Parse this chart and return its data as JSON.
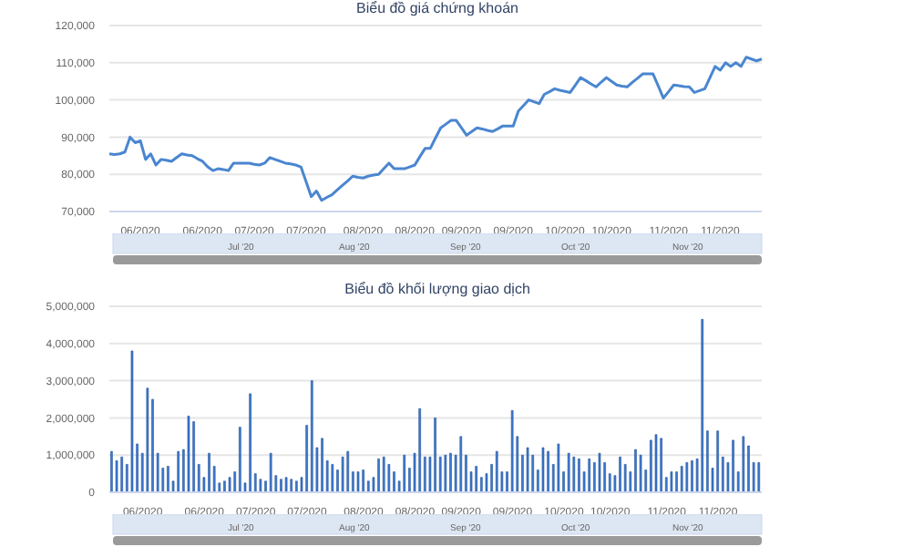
{
  "chart_data": [
    {
      "type": "line",
      "title": "Biểu đồ giá chứng khoán",
      "categories": [
        null,
        null,
        null,
        null,
        null,
        null,
        "06/2020",
        null,
        null,
        null,
        null,
        null,
        null,
        null,
        null,
        null,
        null,
        null,
        "06/2020",
        null,
        null,
        null,
        null,
        null,
        null,
        null,
        null,
        null,
        "07/2020",
        null,
        null,
        null,
        null,
        null,
        null,
        null,
        null,
        null,
        "07/2020",
        null,
        null,
        null,
        null,
        null,
        null,
        null,
        null,
        null,
        null,
        "08/2020",
        null,
        null,
        null,
        null,
        null,
        null,
        null,
        null,
        null,
        "08/2020",
        null,
        null,
        null,
        null,
        null,
        null,
        null,
        null,
        "09/2020",
        null,
        null,
        null,
        null,
        null,
        null,
        null,
        null,
        null,
        "09/2020",
        null,
        null,
        null,
        null,
        null,
        null,
        null,
        null,
        null,
        "10/2020",
        null,
        null,
        null,
        null,
        null,
        null,
        null,
        null,
        "10/2020",
        null,
        null,
        null,
        null,
        null,
        null,
        null,
        null,
        null,
        null,
        "11/2020",
        null,
        null,
        null,
        null,
        null,
        null,
        null,
        null,
        null,
        "11/2020",
        null,
        null,
        null,
        null,
        null,
        null,
        null,
        null
      ],
      "series": [
        {
          "color": "#4a86d0",
          "values": [
            85500,
            85300,
            85500,
            86000,
            90000,
            88500,
            89000,
            84000,
            85500,
            82500,
            84000,
            83800,
            83500,
            84500,
            85500,
            85200,
            85000,
            84200,
            83500,
            82000,
            81000,
            81500,
            81300,
            81000,
            83000,
            83000,
            83000,
            83000,
            82700,
            82500,
            83000,
            84500,
            84000,
            83500,
            83000,
            82800,
            82500,
            82000,
            78000,
            74000,
            75500,
            73000,
            73800,
            74500,
            75800,
            77000,
            78200,
            79500,
            79200,
            79000,
            79500,
            79800,
            80000,
            81500,
            83000,
            81500,
            81500,
            81500,
            82000,
            82500,
            84800,
            87000,
            87000,
            89800,
            92500,
            93500,
            94500,
            94500,
            92500,
            90500,
            91500,
            92500,
            92200,
            91800,
            91500,
            92200,
            93000,
            93000,
            93000,
            97000,
            98500,
            100000,
            99500,
            99000,
            101500,
            102200,
            103000,
            102600,
            102300,
            102000,
            104000,
            106000,
            105200,
            104300,
            103500,
            104800,
            106000,
            105000,
            104000,
            103700,
            103500,
            104700,
            105800,
            107000,
            107000,
            107000,
            103800,
            100500,
            102200,
            104000,
            103800,
            103600,
            103500,
            102000,
            102500,
            103000,
            106000,
            109000,
            108000,
            110000,
            109000,
            110000,
            109000,
            111500,
            111000,
            110500,
            111000
          ]
        }
      ],
      "ylim": [
        70000,
        120000
      ],
      "yticks": [
        {
          "value": 70000,
          "label": "70,000"
        },
        {
          "value": 80000,
          "label": "80,000"
        },
        {
          "value": 90000,
          "label": "90,000"
        },
        {
          "value": 100000,
          "label": "100,000"
        },
        {
          "value": 110000,
          "label": "110,000"
        },
        {
          "value": 120000,
          "label": "120,000"
        }
      ],
      "grid": "y",
      "marker": "none",
      "annotations": [
        "Jul '20",
        "Aug '20",
        "Sep '20",
        "Oct '20",
        "Nov '20"
      ]
    },
    {
      "type": "bar",
      "title": "Biểu đồ khối lượng giao dịch",
      "categories": [
        null,
        null,
        null,
        null,
        null,
        null,
        "06/2020",
        null,
        null,
        null,
        null,
        null,
        null,
        null,
        null,
        null,
        null,
        null,
        "06/2020",
        null,
        null,
        null,
        null,
        null,
        null,
        null,
        null,
        null,
        "07/2020",
        null,
        null,
        null,
        null,
        null,
        null,
        null,
        null,
        null,
        "07/2020",
        null,
        null,
        null,
        null,
        null,
        null,
        null,
        null,
        null,
        null,
        "08/2020",
        null,
        null,
        null,
        null,
        null,
        null,
        null,
        null,
        null,
        "08/2020",
        null,
        null,
        null,
        null,
        null,
        null,
        null,
        null,
        "09/2020",
        null,
        null,
        null,
        null,
        null,
        null,
        null,
        null,
        null,
        "09/2020",
        null,
        null,
        null,
        null,
        null,
        null,
        null,
        null,
        null,
        "10/2020",
        null,
        null,
        null,
        null,
        null,
        null,
        null,
        null,
        "10/2020",
        null,
        null,
        null,
        null,
        null,
        null,
        null,
        null,
        null,
        null,
        "11/2020",
        null,
        null,
        null,
        null,
        null,
        null,
        null,
        null,
        null,
        "11/2020",
        null,
        null,
        null,
        null,
        null,
        null,
        null,
        null
      ],
      "series": [
        {
          "color": "#3d7ad1",
          "values": [
            1100000,
            850000,
            950000,
            750000,
            3800000,
            1300000,
            1050000,
            2800000,
            2500000,
            1050000,
            650000,
            700000,
            300000,
            1100000,
            1150000,
            2050000,
            1900000,
            750000,
            400000,
            1050000,
            700000,
            250000,
            300000,
            400000,
            550000,
            1750000,
            250000,
            2650000,
            500000,
            350000,
            300000,
            1050000,
            450000,
            350000,
            400000,
            350000,
            300000,
            400000,
            1800000,
            3000000,
            1200000,
            1450000,
            850000,
            750000,
            600000,
            950000,
            1100000,
            550000,
            550000,
            600000,
            300000,
            400000,
            900000,
            950000,
            750000,
            550000,
            300000,
            1000000,
            650000,
            1050000,
            2250000,
            950000,
            950000,
            2000000,
            950000,
            1000000,
            1050000,
            1000000,
            1500000,
            1000000,
            550000,
            700000,
            400000,
            500000,
            750000,
            1100000,
            550000,
            550000,
            2200000,
            1500000,
            1000000,
            1200000,
            1000000,
            600000,
            1200000,
            1100000,
            750000,
            1300000,
            550000,
            1050000,
            950000,
            900000,
            550000,
            900000,
            800000,
            1050000,
            800000,
            500000,
            450000,
            950000,
            750000,
            550000,
            1150000,
            1000000,
            600000,
            1400000,
            1550000,
            1450000,
            400000,
            550000,
            550000,
            700000,
            800000,
            850000,
            900000,
            4650000,
            1650000,
            650000,
            1650000,
            950000,
            800000,
            1400000,
            550000,
            1500000,
            1250000,
            800000,
            800000
          ]
        }
      ],
      "ylim": [
        0,
        5000000
      ],
      "yticks": [
        0,
        {
          "value": 1000000,
          "label": "1,000,000"
        },
        {
          "value": 2000000,
          "label": "2,000,000"
        },
        {
          "value": 3000000,
          "label": "3,000,000"
        },
        {
          "value": 4000000,
          "label": "4,000,000"
        },
        {
          "value": 5000000,
          "label": "5,000,000"
        }
      ],
      "grid": "y",
      "annotations": [
        "Jul '20",
        "Aug '20",
        "Sep '20",
        "Oct '20",
        "Nov '20"
      ]
    }
  ]
}
